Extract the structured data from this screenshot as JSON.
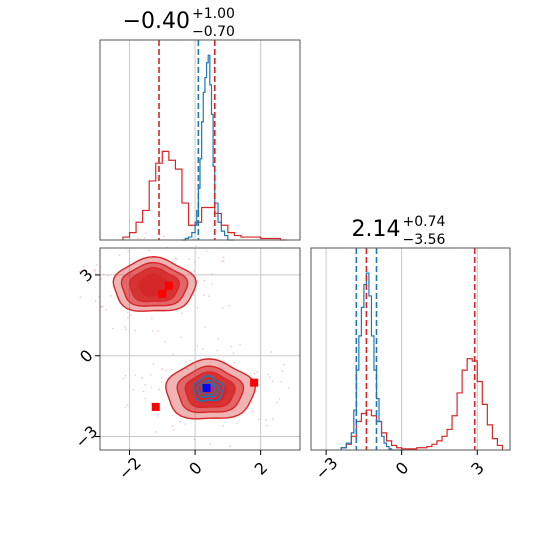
{
  "chart_data": {
    "type": "corner",
    "colors": {
      "reference": "#d62728",
      "posterior": "#1f77b4"
    },
    "panels": [
      {
        "id": "hist-param1",
        "type": "histogram",
        "title": {
          "median": "−0.40",
          "plus": "+1.00",
          "minus": "−0.70"
        },
        "xlim": [
          -2.9,
          3.2
        ],
        "grid_x": [
          -2,
          0,
          2
        ],
        "blue_quantile_lines": [
          0.1,
          0.6
        ],
        "red_quantile_lines": [
          -1.1,
          0.6
        ],
        "red_hist": {
          "edges": [
            -2.2,
            -2.0,
            -1.8,
            -1.6,
            -1.4,
            -1.2,
            -1.0,
            -0.8,
            -0.6,
            -0.4,
            -0.2,
            0.0,
            0.2,
            0.4,
            0.6,
            0.8,
            1.0,
            1.2,
            1.4,
            1.6,
            1.8,
            2.0,
            2.2,
            2.4,
            2.6,
            2.8
          ],
          "counts": [
            0.02,
            0.05,
            0.12,
            0.2,
            0.4,
            0.52,
            0.6,
            0.54,
            0.48,
            0.25,
            0.1,
            0.12,
            0.22,
            0.22,
            0.18,
            0.1,
            0.05,
            0.03,
            0.02,
            0.02,
            0.02,
            0.01,
            0.01,
            0.01,
            0.0
          ]
        },
        "blue_hist": {
          "edges": [
            -0.4,
            -0.3,
            -0.2,
            -0.1,
            0.0,
            0.05,
            0.1,
            0.15,
            0.2,
            0.25,
            0.3,
            0.35,
            0.4,
            0.45,
            0.5,
            0.55,
            0.6,
            0.7,
            0.8,
            0.9,
            1.0,
            1.2
          ],
          "counts": [
            0.0,
            0.01,
            0.02,
            0.05,
            0.1,
            0.2,
            0.35,
            0.55,
            0.8,
            1.0,
            1.1,
            1.2,
            1.25,
            1.05,
            0.85,
            0.5,
            0.25,
            0.12,
            0.06,
            0.03,
            0.0
          ]
        },
        "ymax": 1.3
      },
      {
        "id": "hist-param2",
        "type": "histogram",
        "title": {
          "median": "2.14",
          "plus": "+0.74",
          "minus": "−3.56"
        },
        "xlim": [
          -3.6,
          4.3
        ],
        "grid_x": [
          -3,
          0,
          3
        ],
        "tick_labels": [
          "−3",
          "0",
          "3"
        ],
        "blue_quantile_lines": [
          -1.8,
          -1.0
        ],
        "red_quantile_lines": [
          -1.4,
          2.9
        ],
        "red_hist": {
          "edges": [
            -2.4,
            -2.2,
            -2.0,
            -1.8,
            -1.6,
            -1.4,
            -1.2,
            -1.0,
            -0.8,
            -0.6,
            -0.4,
            -0.2,
            0.0,
            0.2,
            0.4,
            0.6,
            0.8,
            1.0,
            1.2,
            1.4,
            1.6,
            1.8,
            2.0,
            2.2,
            2.4,
            2.6,
            2.8,
            3.0,
            3.2,
            3.4,
            3.6,
            3.8,
            4.0
          ],
          "counts": [
            0.02,
            0.05,
            0.12,
            0.25,
            0.32,
            0.35,
            0.3,
            0.25,
            0.15,
            0.08,
            0.04,
            0.02,
            0.01,
            0.01,
            0.01,
            0.02,
            0.02,
            0.03,
            0.05,
            0.08,
            0.12,
            0.18,
            0.3,
            0.5,
            0.7,
            0.8,
            0.78,
            0.6,
            0.4,
            0.22,
            0.1,
            0.04
          ]
        },
        "blue_hist": {
          "edges": [
            -2.4,
            -2.2,
            -2.0,
            -1.9,
            -1.8,
            -1.7,
            -1.6,
            -1.5,
            -1.4,
            -1.3,
            -1.2,
            -1.1,
            -1.0,
            -0.9,
            -0.8,
            -0.7,
            -0.6,
            -0.5,
            -0.4,
            -0.2,
            0.0
          ],
          "counts": [
            0.02,
            0.06,
            0.15,
            0.35,
            0.7,
            1.0,
            1.25,
            1.45,
            1.55,
            1.35,
            1.0,
            0.7,
            0.45,
            0.25,
            0.12,
            0.06,
            0.03,
            0.01,
            0.0,
            0.0
          ]
        },
        "ymax": 1.7
      },
      {
        "id": "scatter-2d",
        "type": "contour",
        "xlim": [
          -2.9,
          3.2
        ],
        "ylim": [
          -3.5,
          4.0
        ],
        "grid_x": [
          -2,
          0,
          2
        ],
        "grid_y": [
          -3,
          0,
          3
        ],
        "x_tick_labels": [
          "−2",
          "0",
          "2"
        ],
        "y_tick_labels": [
          "−3",
          "0",
          "3"
        ],
        "red_clusters": [
          {
            "cx": -1.25,
            "cy": 2.6,
            "levels": [
              [
                1.25,
                1.0
              ],
              [
                1.0,
                0.8
              ],
              [
                0.75,
                0.62
              ],
              [
                0.45,
                0.4
              ]
            ]
          },
          {
            "cx": 0.45,
            "cy": -1.3,
            "levels": [
              [
                1.35,
                1.1
              ],
              [
                1.0,
                0.85
              ],
              [
                0.75,
                0.65
              ],
              [
                0.5,
                0.45
              ]
            ]
          }
        ],
        "blue_contour": {
          "cx": 0.4,
          "cy": -1.25,
          "levels": [
            [
              0.45,
              0.45
            ],
            [
              0.32,
              0.3
            ],
            [
              0.2,
              0.2
            ]
          ]
        },
        "red_markers": [
          {
            "x": -0.8,
            "y": 2.6
          },
          {
            "x": -1.0,
            "y": 2.3
          },
          {
            "x": 1.8,
            "y": -1.0
          },
          {
            "x": -1.2,
            "y": -1.9
          }
        ],
        "blue_marker": {
          "x": 0.35,
          "y": -1.2
        }
      }
    ]
  }
}
